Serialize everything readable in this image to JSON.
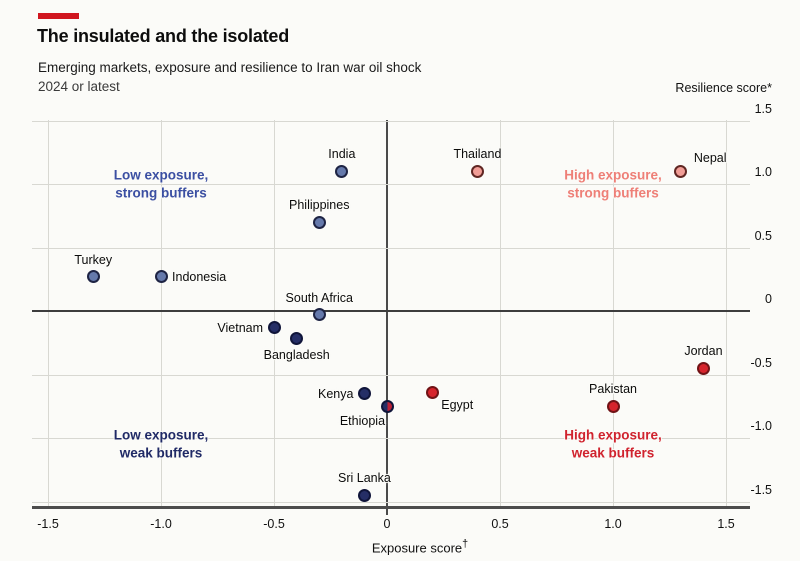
{
  "header": {
    "title": "The insulated and the isolated",
    "subtitle": "Emerging markets, exposure and resilience to Iran war oil shock",
    "dateline": "2024 or latest"
  },
  "colors": {
    "accent_red": "#d0161f",
    "background": "#fbfbf8",
    "grid": "#d8d8d2",
    "zero_line": "#3d3d3d",
    "bottom_axis": "#4c4c4c",
    "text": "#0d0d0d"
  },
  "chart_data": {
    "type": "scatter",
    "title": "The insulated and the isolated",
    "subtitle": "Emerging markets, exposure and resilience to Iran war oil shock",
    "xlabel": "Exposure score",
    "xlabel_sup": "†",
    "ylabel": "Resilience score*",
    "xlim": [
      -1.571,
      1.606
    ],
    "ylim": [
      -1.551,
      1.504
    ],
    "grid": true,
    "x_ticks": [
      {
        "v": -1.5,
        "label": "-1.5"
      },
      {
        "v": -1.0,
        "label": "-1.0"
      },
      {
        "v": -0.5,
        "label": "-0.5"
      },
      {
        "v": 0,
        "label": "0"
      },
      {
        "v": 0.5,
        "label": "0.5"
      },
      {
        "v": 1.0,
        "label": "1.0"
      },
      {
        "v": 1.5,
        "label": "1.5"
      }
    ],
    "y_ticks": [
      {
        "v": 1.5,
        "label": "1.5"
      },
      {
        "v": 1.0,
        "label": "1.0"
      },
      {
        "v": 0.5,
        "label": "0.5"
      },
      {
        "v": 0,
        "label": "0"
      },
      {
        "v": -0.5,
        "label": "-0.5"
      },
      {
        "v": -1.0,
        "label": "-1.0"
      },
      {
        "v": -1.5,
        "label": "-1.5"
      }
    ],
    "groups": {
      "blue": {
        "fill": "#6579ab",
        "stroke": "#1e2444"
      },
      "navy": {
        "fill": "#252e66",
        "stroke": "#10153a"
      },
      "pink": {
        "fill": "#f19d96",
        "stroke": "#602723"
      },
      "red": {
        "fill": "#d6242c",
        "stroke": "#701316"
      },
      "split": {
        "fill_left": "#252e66",
        "fill_right": "#bc2238",
        "stroke": "#10153a"
      }
    },
    "points": [
      {
        "name": "India",
        "x": -0.2,
        "y": 1.1,
        "group": "blue",
        "label_pos": "above"
      },
      {
        "name": "Thailand",
        "x": 0.4,
        "y": 1.1,
        "group": "pink",
        "label_pos": "above"
      },
      {
        "name": "Nepal",
        "x": 1.3,
        "y": 1.1,
        "group": "pink",
        "label_pos": "above-right"
      },
      {
        "name": "Philippines",
        "x": -0.3,
        "y": 0.7,
        "group": "blue",
        "label_pos": "above"
      },
      {
        "name": "Turkey",
        "x": -1.3,
        "y": 0.27,
        "group": "blue",
        "label_pos": "above"
      },
      {
        "name": "Indonesia",
        "x": -1.0,
        "y": 0.27,
        "group": "blue",
        "label_pos": "right"
      },
      {
        "name": "South Africa",
        "x": -0.3,
        "y": -0.03,
        "group": "blue",
        "label_pos": "above"
      },
      {
        "name": "Vietnam",
        "x": -0.5,
        "y": -0.13,
        "group": "navy",
        "label_pos": "left"
      },
      {
        "name": "Bangladesh",
        "x": -0.4,
        "y": -0.22,
        "group": "navy",
        "label_pos": "below"
      },
      {
        "name": "Kenya",
        "x": -0.1,
        "y": -0.65,
        "group": "navy",
        "label_pos": "left"
      },
      {
        "name": "Egypt",
        "x": 0.2,
        "y": -0.64,
        "group": "red",
        "label_pos": "below-right"
      },
      {
        "name": "Ethiopia",
        "x": 0.0,
        "y": -0.75,
        "group": "split",
        "label_pos": "below-left"
      },
      {
        "name": "Pakistan",
        "x": 1.0,
        "y": -0.75,
        "group": "red",
        "label_pos": "above"
      },
      {
        "name": "Jordan",
        "x": 1.4,
        "y": -0.45,
        "group": "red",
        "label_pos": "above"
      },
      {
        "name": "Sri Lanka",
        "x": -0.1,
        "y": -1.45,
        "group": "navy",
        "label_pos": "above"
      }
    ],
    "quadrant_labels": [
      {
        "line1": "Low exposure,",
        "line2": "strong buffers",
        "x": -1.0,
        "y": 1.0,
        "color": "#3b4fa2"
      },
      {
        "line1": "High exposure,",
        "line2": "strong buffers",
        "x": 1.0,
        "y": 1.0,
        "color": "#ee7f77"
      },
      {
        "line1": "Low exposure,",
        "line2": "weak buffers",
        "x": -1.0,
        "y": -1.05,
        "color": "#202a66"
      },
      {
        "line1": "High exposure,",
        "line2": "weak buffers",
        "x": 1.0,
        "y": -1.05,
        "color": "#d0232e"
      }
    ]
  }
}
